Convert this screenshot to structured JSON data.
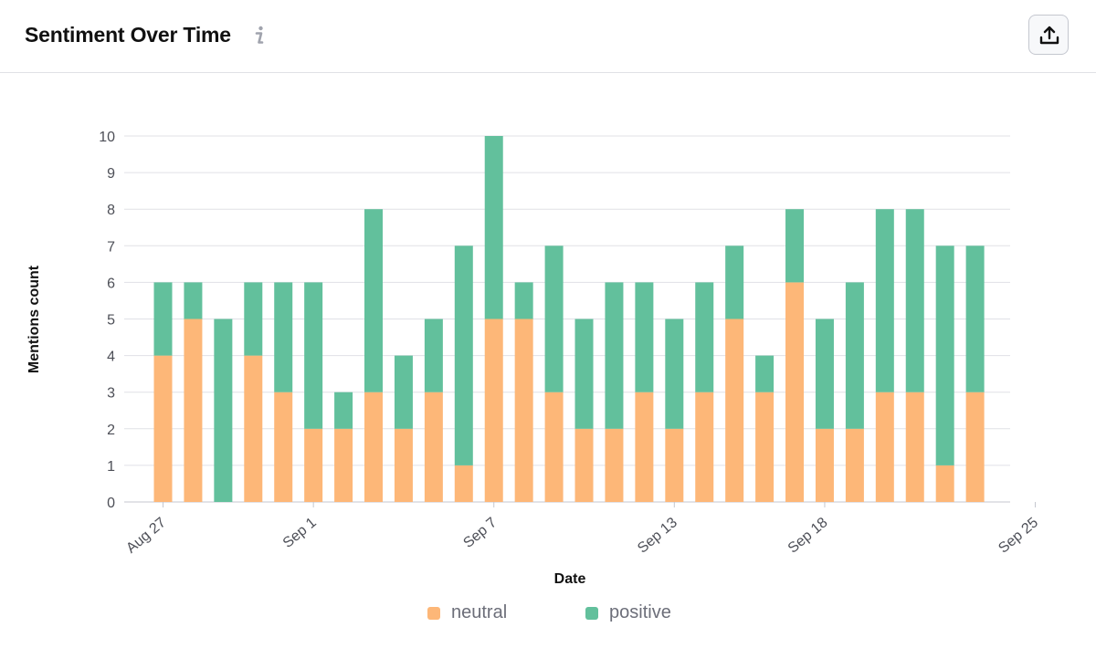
{
  "header": {
    "title": "Sentiment Over Time",
    "info_icon": "info-icon",
    "export_icon": "upload-icon"
  },
  "colors": {
    "neutral": "#fdb778",
    "positive": "#62c09c",
    "grid": "#e0e1e6",
    "axis": "#c4c7cf"
  },
  "chart_data": {
    "type": "bar",
    "stacked": true,
    "title": "",
    "xlabel": "Date",
    "ylabel": "Mentions count",
    "ylim": [
      0,
      10
    ],
    "yticks": [
      0,
      1,
      2,
      3,
      4,
      5,
      6,
      7,
      8,
      9,
      10
    ],
    "grid": true,
    "legend_position": "bottom",
    "categories": [
      "Aug 27",
      "Aug 28",
      "Aug 29",
      "Aug 30",
      "Aug 31",
      "Sep 1",
      "Sep 2",
      "Sep 3",
      "Sep 4",
      "Sep 5",
      "Sep 6",
      "Sep 7",
      "Sep 8",
      "Sep 9",
      "Sep 10",
      "Sep 11",
      "Sep 12",
      "Sep 13",
      "Sep 14",
      "Sep 15",
      "Sep 16",
      "Sep 17",
      "Sep 18",
      "Sep 19",
      "Sep 20",
      "Sep 21",
      "Sep 22",
      "Sep 23",
      "Sep 24",
      "Sep 25"
    ],
    "tick_labels": [
      "Aug 27",
      "",
      "",
      "",
      "",
      "Sep 1",
      "",
      "",
      "",
      "",
      "",
      "Sep 7",
      "",
      "",
      "",
      "",
      "",
      "Sep 13",
      "",
      "",
      "",
      "",
      "Sep 18",
      "",
      "",
      "",
      "",
      "",
      "",
      "Sep 25"
    ],
    "series": [
      {
        "name": "neutral",
        "color": "#fdb778",
        "values": [
          4,
          5,
          0,
          4,
          3,
          2,
          2,
          3,
          2,
          3,
          1,
          5,
          5,
          3,
          2,
          2,
          3,
          2,
          3,
          5,
          3,
          6,
          2,
          2,
          3,
          3,
          1,
          3,
          0,
          0
        ]
      },
      {
        "name": "positive",
        "color": "#62c09c",
        "values": [
          2,
          1,
          5,
          2,
          3,
          4,
          1,
          5,
          2,
          2,
          6,
          5,
          1,
          4,
          3,
          4,
          3,
          3,
          3,
          2,
          1,
          2,
          3,
          4,
          5,
          5,
          6,
          4,
          0,
          0
        ]
      }
    ]
  },
  "legend": {
    "items": [
      {
        "label": "neutral"
      },
      {
        "label": "positive"
      }
    ]
  }
}
